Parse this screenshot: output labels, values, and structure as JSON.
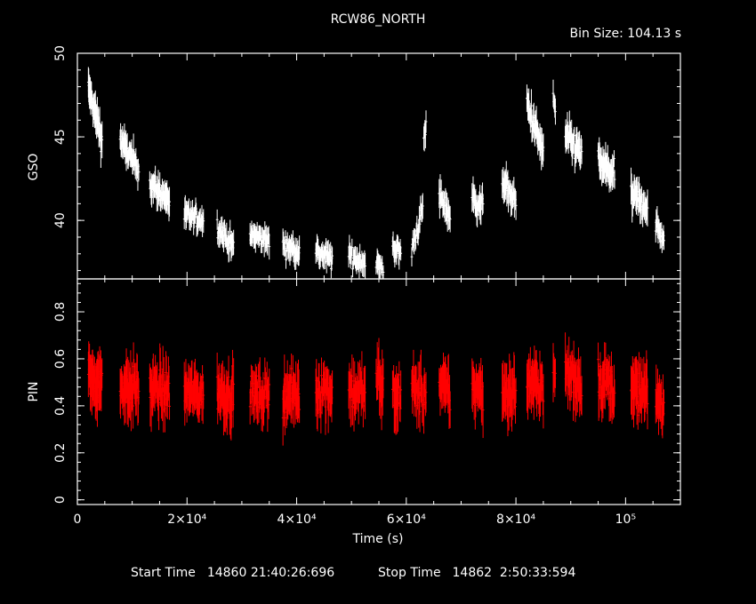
{
  "header": {
    "title": "RCW86_NORTH",
    "bin_size": "Bin Size: 104.13 s"
  },
  "footer": {
    "start_label": "Start Time",
    "start_value": "14860 21:40:26:696",
    "stop_label": "Stop Time",
    "stop_value": "14862  2:50:33:594"
  },
  "chart_data": [
    {
      "type": "scatter",
      "name": "GSO panel",
      "ylabel": "GSO",
      "xlim": [
        0,
        110000
      ],
      "ylim": [
        36.5,
        50
      ],
      "yticks": [
        40,
        45,
        50
      ],
      "ytick_labels": [
        "40",
        "45",
        "50"
      ],
      "color": "#ffffff",
      "errorbars": true,
      "segments": [
        {
          "x": [
            2000,
            4500
          ],
          "y": [
            47.9,
            44.8
          ],
          "err": 0.8,
          "n": 36
        },
        {
          "x": [
            7800,
            11200
          ],
          "y": [
            44.8,
            43.0
          ],
          "err": 0.7,
          "n": 40
        },
        {
          "x": [
            13200,
            16800
          ],
          "y": [
            42.2,
            41.2
          ],
          "err": 0.7,
          "n": 40
        },
        {
          "x": [
            19500,
            23000
          ],
          "y": [
            40.3,
            40.0
          ],
          "err": 0.6,
          "n": 38
        },
        {
          "x": [
            25500,
            28500
          ],
          "y": [
            39.6,
            38.4
          ],
          "err": 0.6,
          "n": 34
        },
        {
          "x": [
            31500,
            35000
          ],
          "y": [
            39.1,
            38.8
          ],
          "err": 0.6,
          "n": 36
        },
        {
          "x": [
            37500,
            40500
          ],
          "y": [
            38.5,
            38.2
          ],
          "err": 0.6,
          "n": 34
        },
        {
          "x": [
            43500,
            46500
          ],
          "y": [
            38.1,
            37.7
          ],
          "err": 0.6,
          "n": 30
        },
        {
          "x": [
            49500,
            52500
          ],
          "y": [
            37.9,
            37.5
          ],
          "err": 0.6,
          "n": 26
        },
        {
          "x": [
            54500,
            55800
          ],
          "y": [
            37.5,
            36.9
          ],
          "err": 0.6,
          "n": 14
        },
        {
          "x": [
            57500,
            59000
          ],
          "y": [
            38.5,
            38.0
          ],
          "err": 0.6,
          "n": 16
        },
        {
          "x": [
            61000,
            63000
          ],
          "y": [
            38.2,
            40.7
          ],
          "err": 0.6,
          "n": 20
        },
        {
          "x": [
            63200,
            63600
          ],
          "y": [
            45.0,
            45.5
          ],
          "err": 0.7,
          "n": 5
        },
        {
          "x": [
            66000,
            68000
          ],
          "y": [
            41.5,
            40.3
          ],
          "err": 0.7,
          "n": 22
        },
        {
          "x": [
            72000,
            74000
          ],
          "y": [
            41.3,
            40.8
          ],
          "err": 0.7,
          "n": 22
        },
        {
          "x": [
            77500,
            80000
          ],
          "y": [
            42.5,
            41.0
          ],
          "err": 0.7,
          "n": 28
        },
        {
          "x": [
            82000,
            85000
          ],
          "y": [
            47.0,
            44.0
          ],
          "err": 0.8,
          "n": 34
        },
        {
          "x": [
            86800,
            87200
          ],
          "y": [
            47.5,
            46.5
          ],
          "err": 0.6,
          "n": 5
        },
        {
          "x": [
            89000,
            92000
          ],
          "y": [
            45.0,
            44.0
          ],
          "err": 0.8,
          "n": 32
        },
        {
          "x": [
            95000,
            98000
          ],
          "y": [
            43.5,
            42.7
          ],
          "err": 0.8,
          "n": 32
        },
        {
          "x": [
            101000,
            104000
          ],
          "y": [
            41.5,
            40.8
          ],
          "err": 0.8,
          "n": 32
        },
        {
          "x": [
            105500,
            107000
          ],
          "y": [
            39.8,
            38.8
          ],
          "err": 0.6,
          "n": 18
        }
      ]
    },
    {
      "type": "scatter",
      "name": "PIN panel",
      "xlabel": "Time (s)",
      "ylabel": "PIN",
      "xlim": [
        0,
        110000
      ],
      "ylim": [
        -0.02,
        0.94
      ],
      "yticks": [
        0,
        0.2,
        0.4,
        0.6,
        0.8
      ],
      "ytick_labels": [
        "0",
        "0.2",
        "0.4",
        "0.6",
        "0.8"
      ],
      "xticks": [
        0,
        20000,
        40000,
        60000,
        80000,
        100000
      ],
      "xtick_labels": [
        "0",
        "2×10⁴",
        "4×10⁴",
        "6×10⁴",
        "8×10⁴",
        "10⁵"
      ],
      "color": "#ff0000",
      "errorbars": true,
      "segments": [
        {
          "x": [
            2000,
            4500
          ],
          "y": [
            0.52,
            0.5
          ],
          "err": 0.09,
          "n": 36
        },
        {
          "x": [
            7800,
            11200
          ],
          "y": [
            0.48,
            0.47
          ],
          "err": 0.09,
          "n": 40
        },
        {
          "x": [
            13200,
            16800
          ],
          "y": [
            0.47,
            0.46
          ],
          "err": 0.09,
          "n": 40
        },
        {
          "x": [
            19500,
            23000
          ],
          "y": [
            0.46,
            0.45
          ],
          "err": 0.08,
          "n": 38
        },
        {
          "x": [
            25500,
            28500
          ],
          "y": [
            0.46,
            0.45
          ],
          "err": 0.09,
          "n": 34
        },
        {
          "x": [
            31500,
            35000
          ],
          "y": [
            0.45,
            0.44
          ],
          "err": 0.08,
          "n": 36
        },
        {
          "x": [
            37500,
            40500
          ],
          "y": [
            0.45,
            0.44
          ],
          "err": 0.09,
          "n": 34
        },
        {
          "x": [
            43500,
            46500
          ],
          "y": [
            0.47,
            0.46
          ],
          "err": 0.09,
          "n": 30
        },
        {
          "x": [
            49500,
            52500
          ],
          "y": [
            0.47,
            0.45
          ],
          "err": 0.09,
          "n": 26
        },
        {
          "x": [
            54500,
            55800
          ],
          "y": [
            0.52,
            0.48
          ],
          "err": 0.09,
          "n": 14
        },
        {
          "x": [
            57500,
            59000
          ],
          "y": [
            0.46,
            0.44
          ],
          "err": 0.09,
          "n": 16
        },
        {
          "x": [
            61000,
            63000
          ],
          "y": [
            0.47,
            0.45
          ],
          "err": 0.09,
          "n": 20
        },
        {
          "x": [
            63200,
            63600
          ],
          "y": [
            0.46,
            0.46
          ],
          "err": 0.09,
          "n": 5
        },
        {
          "x": [
            66000,
            68000
          ],
          "y": [
            0.48,
            0.45
          ],
          "err": 0.09,
          "n": 22
        },
        {
          "x": [
            72000,
            74000
          ],
          "y": [
            0.48,
            0.45
          ],
          "err": 0.09,
          "n": 22
        },
        {
          "x": [
            77500,
            80000
          ],
          "y": [
            0.47,
            0.45
          ],
          "err": 0.09,
          "n": 28
        },
        {
          "x": [
            82000,
            85000
          ],
          "y": [
            0.5,
            0.48
          ],
          "err": 0.09,
          "n": 34
        },
        {
          "x": [
            86800,
            87200
          ],
          "y": [
            0.52,
            0.5
          ],
          "err": 0.09,
          "n": 5
        },
        {
          "x": [
            89000,
            92000
          ],
          "y": [
            0.54,
            0.5
          ],
          "err": 0.09,
          "n": 32
        },
        {
          "x": [
            95000,
            98000
          ],
          "y": [
            0.51,
            0.48
          ],
          "err": 0.09,
          "n": 32
        },
        {
          "x": [
            101000,
            104000
          ],
          "y": [
            0.47,
            0.44
          ],
          "err": 0.09,
          "n": 32
        },
        {
          "x": [
            105500,
            107000
          ],
          "y": [
            0.44,
            0.4
          ],
          "err": 0.08,
          "n": 18
        }
      ]
    }
  ]
}
